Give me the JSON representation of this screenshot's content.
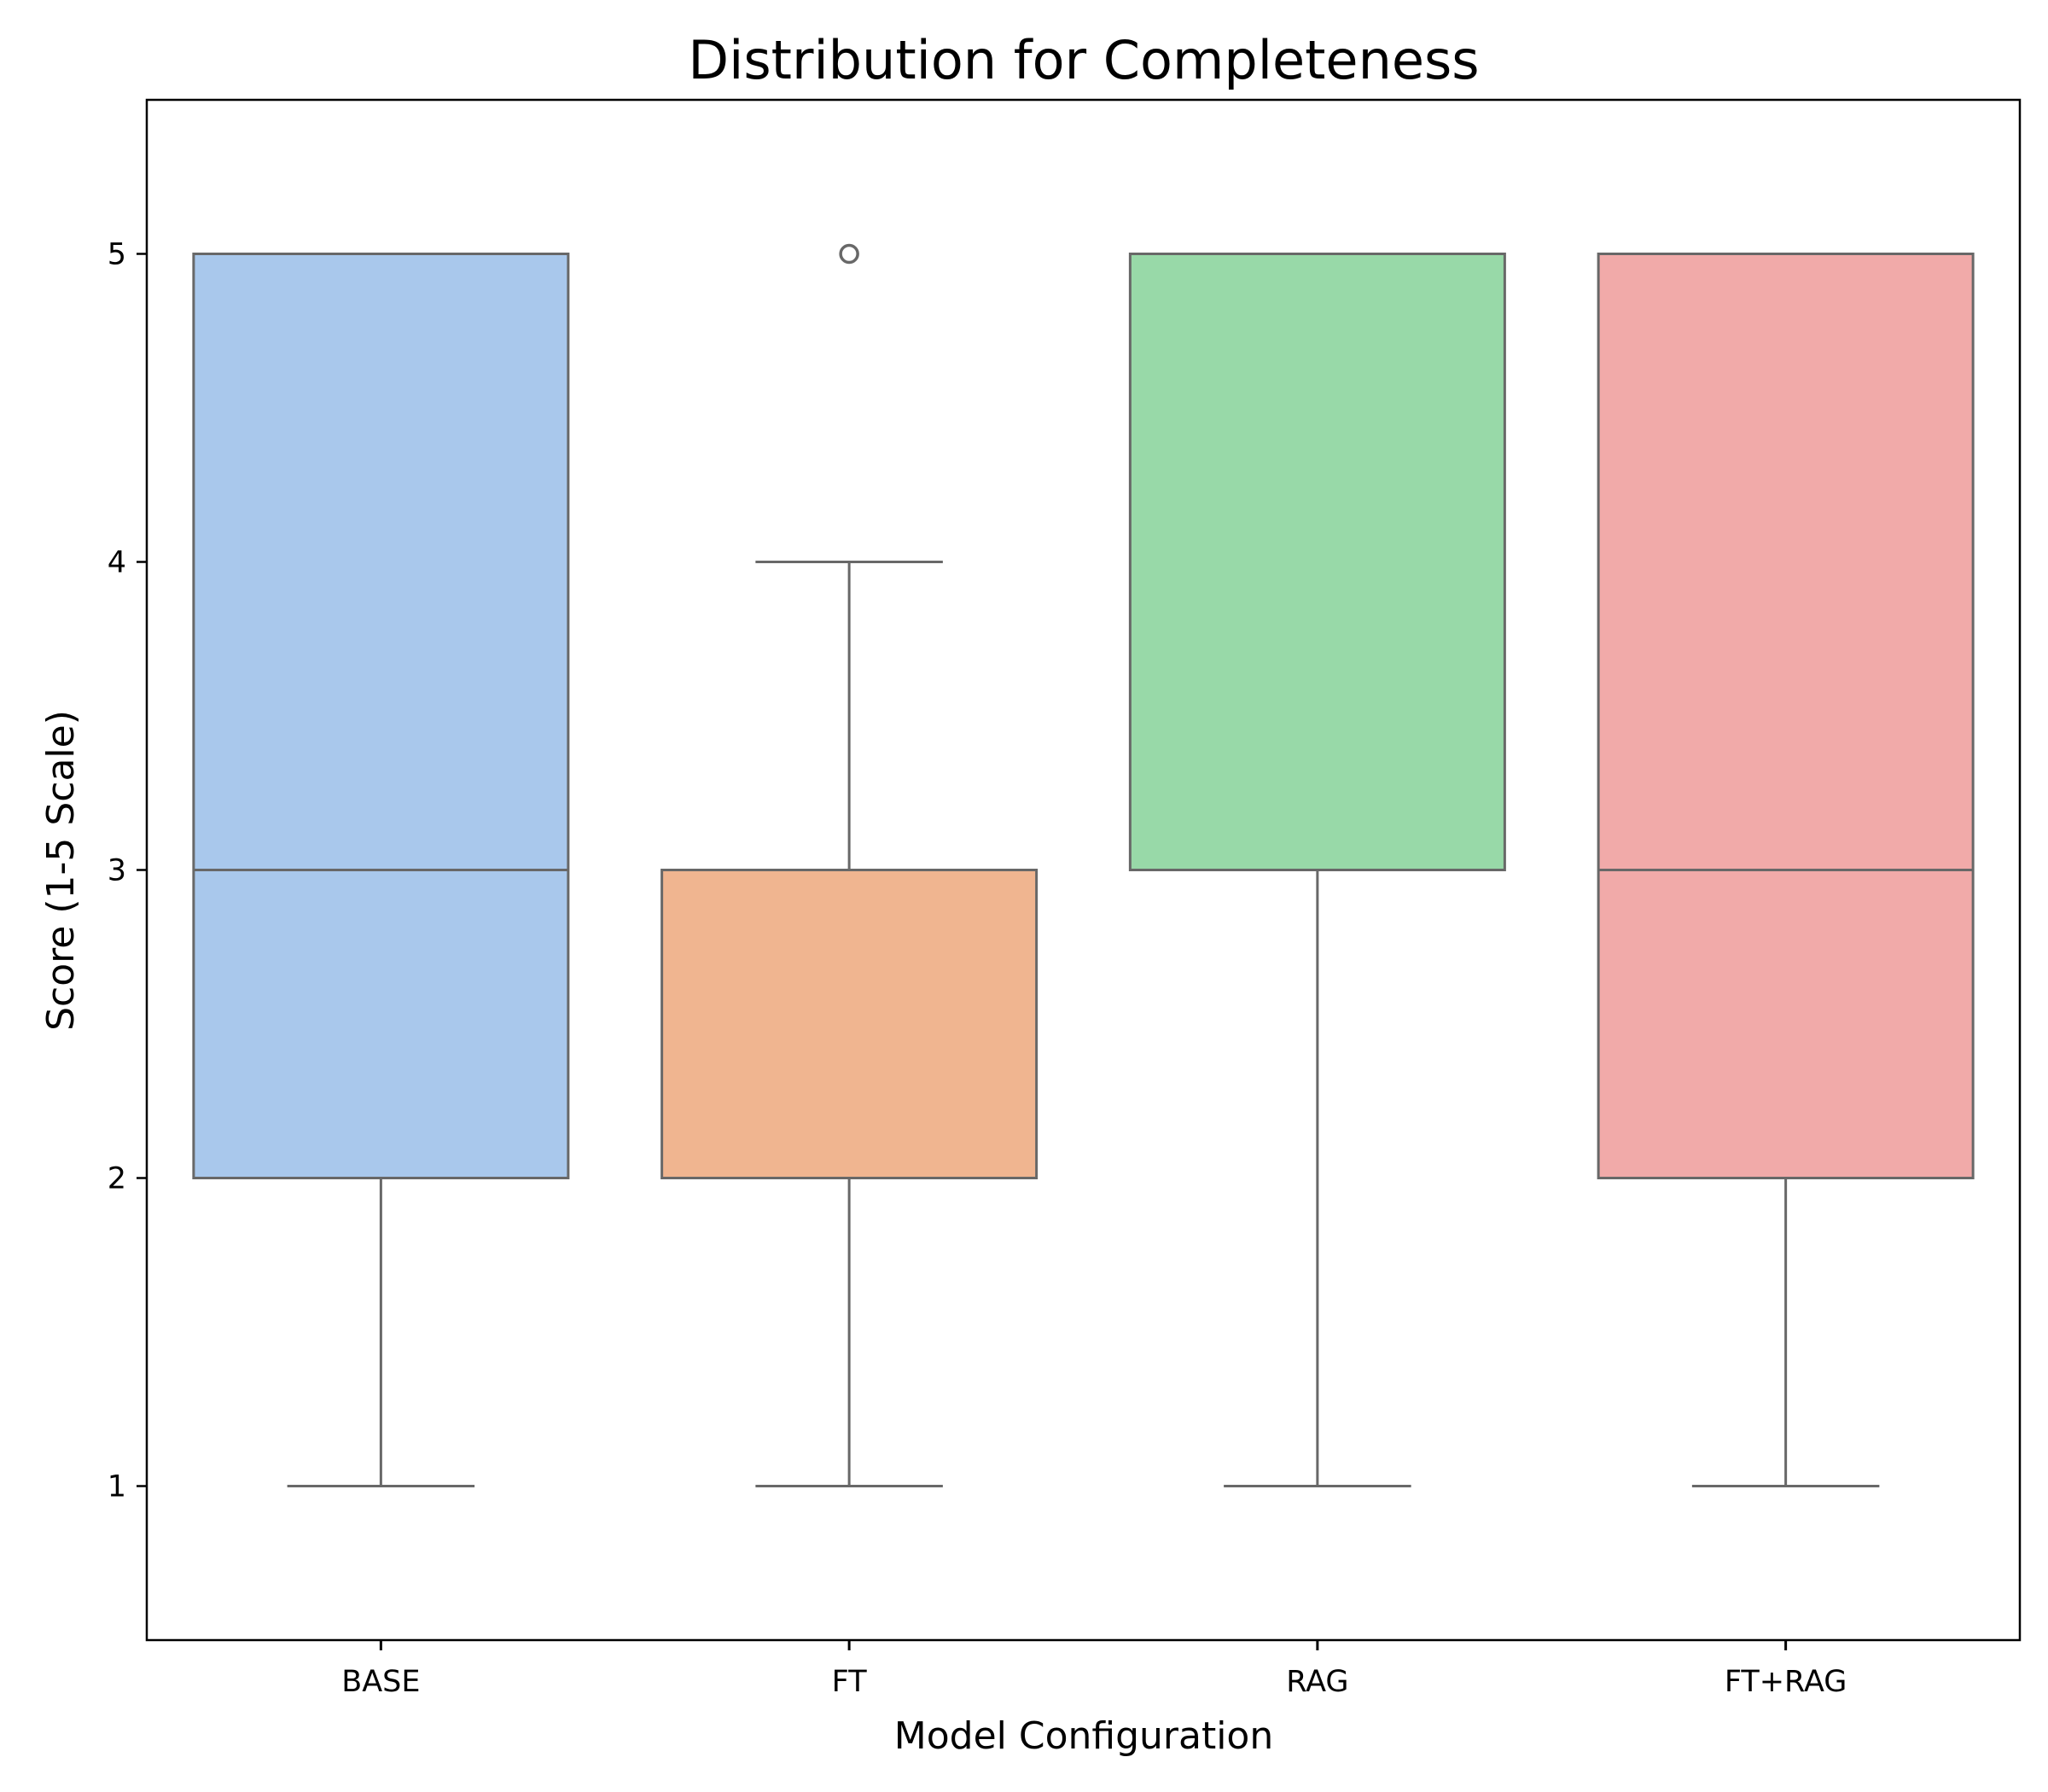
{
  "chart_data": {
    "type": "box",
    "title": "Distribution for Completeness",
    "xlabel": "Model Configuration",
    "ylabel": "Score (1-5 Scale)",
    "ylim": [
      0.5,
      5.5
    ],
    "yticks": [
      "1",
      "2",
      "3",
      "4",
      "5"
    ],
    "grid": false,
    "categories": [
      "BASE",
      "FT",
      "RAG",
      "FT+RAG"
    ],
    "boxes": [
      {
        "category": "BASE",
        "whisker_low": 1,
        "q1": 2,
        "median": 3,
        "q3": 5,
        "whisker_high": 5,
        "outliers": [],
        "color": "#a9c8ec"
      },
      {
        "category": "FT",
        "whisker_low": 1,
        "q1": 2,
        "median": 3,
        "q3": 3,
        "whisker_high": 4,
        "outliers": [
          5
        ],
        "color": "#f0b590"
      },
      {
        "category": "RAG",
        "whisker_low": 1,
        "q1": 3,
        "median": 3,
        "q3": 5,
        "whisker_high": 5,
        "outliers": [],
        "color": "#98d9a8"
      },
      {
        "category": "FT+RAG",
        "whisker_low": 1,
        "q1": 2,
        "median": 3,
        "q3": 5,
        "whisker_high": 5,
        "outliers": [],
        "color": "#f1aaa9"
      }
    ],
    "line_color": "#686868"
  }
}
